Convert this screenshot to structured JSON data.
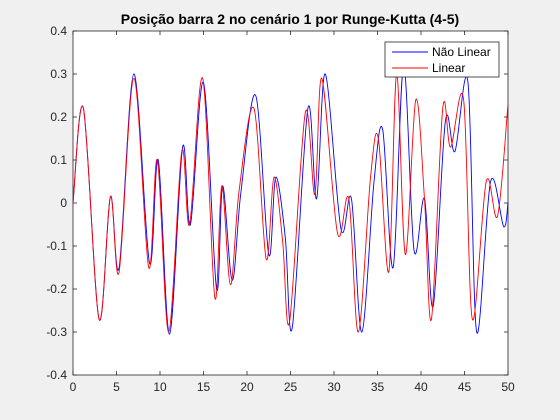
{
  "chart_data": {
    "type": "line",
    "title": "Posição barra 2 no cenário 1 por Runge-Kutta (4-5)",
    "xlabel": "",
    "ylabel": "",
    "xlim": [
      0,
      50
    ],
    "ylim": [
      -0.4,
      0.4
    ],
    "xticks": [
      "0",
      "5",
      "10",
      "15",
      "20",
      "25",
      "30",
      "35",
      "40",
      "45",
      "50"
    ],
    "yticks": [
      "-0.4",
      "-0.3",
      "-0.2",
      "-0.1",
      "0",
      "0.1",
      "0.2",
      "0.3",
      "0.4"
    ],
    "grid": false,
    "legend_position": "top-right",
    "series": [
      {
        "name": "Não Linear",
        "color": "#0000ff",
        "x": [
          0,
          1.2,
          3,
          4.3,
          5.3,
          7,
          8.8,
          9.8,
          11.1,
          12.6,
          13.5,
          15,
          16.5,
          17.2,
          18.3,
          19.3,
          21,
          22.5,
          23.3,
          24.4,
          25.2,
          27,
          28,
          29,
          30.8,
          32,
          33.2,
          34.6,
          35.6,
          36.8,
          38,
          39.2,
          40.4,
          41.4,
          42.8,
          43.9,
          45.4,
          46.4,
          48,
          49.5,
          50
        ],
        "y": [
          0,
          0.22,
          -0.27,
          0.015,
          -0.15,
          0.3,
          -0.14,
          0.1,
          -0.305,
          0.13,
          -0.05,
          0.28,
          -0.2,
          0.04,
          -0.18,
          0.025,
          0.25,
          -0.12,
          0.06,
          -0.08,
          -0.29,
          0.22,
          0.01,
          0.3,
          -0.06,
          0.01,
          -0.3,
          0.05,
          0.17,
          -0.15,
          0.32,
          -0.11,
          0.01,
          -0.24,
          0.19,
          0.12,
          0.28,
          -0.3,
          0.05,
          -0.055,
          0.0
        ]
      },
      {
        "name": "Linear",
        "color": "#ff0000",
        "x": [
          0,
          1.2,
          3,
          4.3,
          5.3,
          7,
          8.7,
          9.7,
          11,
          12.5,
          13.4,
          14.9,
          16.3,
          17.1,
          18.1,
          19.1,
          20.8,
          22.2,
          23.1,
          24.1,
          24.9,
          26.7,
          27.8,
          28.6,
          30.4,
          31.7,
          32.8,
          34.2,
          35.1,
          36.3,
          37.2,
          38.2,
          39.4,
          40.4,
          41.2,
          42.5,
          43.4,
          44.9,
          45.9,
          47.5,
          48.8,
          50
        ],
        "y": [
          0,
          0.22,
          -0.27,
          0.015,
          -0.16,
          0.29,
          -0.15,
          0.1,
          -0.3,
          0.12,
          -0.05,
          0.29,
          -0.22,
          0.04,
          -0.19,
          0.03,
          0.22,
          -0.13,
          0.06,
          -0.09,
          -0.275,
          0.21,
          0.02,
          0.29,
          -0.07,
          0.01,
          -0.3,
          0.06,
          0.15,
          -0.16,
          0.3,
          -0.12,
          0.24,
          0.01,
          -0.27,
          0.22,
          0.13,
          0.24,
          -0.27,
          0.05,
          -0.03,
          0.23
        ]
      }
    ]
  }
}
